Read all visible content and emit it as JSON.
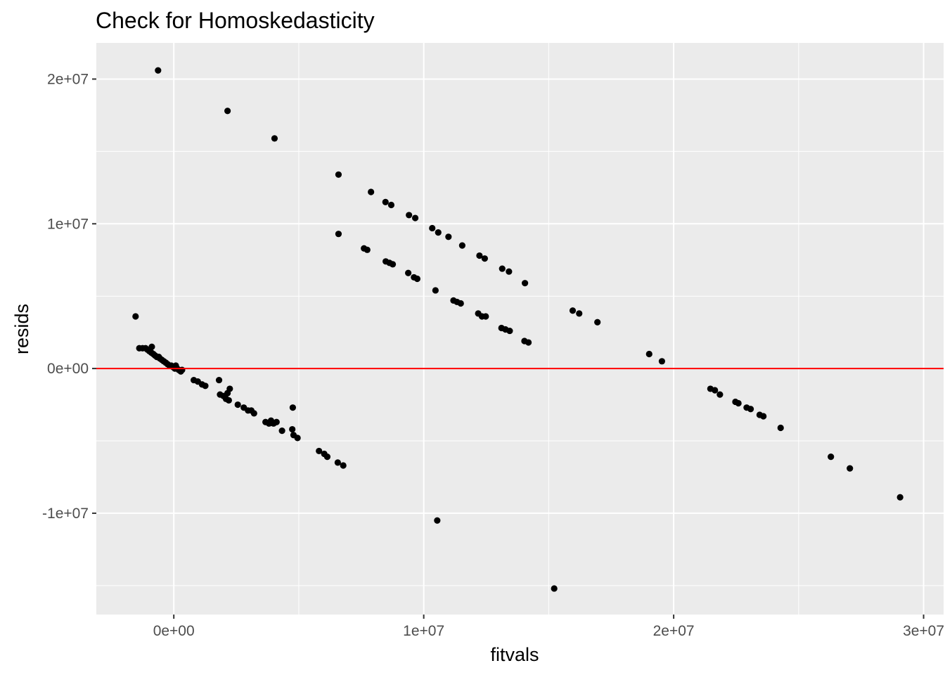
{
  "chart_data": {
    "type": "scatter",
    "title": "Check for Homoskedasticity",
    "xlabel": "fitvals",
    "ylabel": "resids",
    "xlim": [
      -3100000,
      30800000
    ],
    "ylim": [
      -17000000,
      22500000
    ],
    "x_ticks": [
      {
        "value": 0,
        "label": "0e+00"
      },
      {
        "value": 10000000,
        "label": "1e+07"
      },
      {
        "value": 20000000,
        "label": "2e+07"
      },
      {
        "value": 30000000,
        "label": "3e+07"
      }
    ],
    "y_ticks": [
      {
        "value": -10000000,
        "label": "-1e+07"
      },
      {
        "value": 0,
        "label": "0e+00"
      },
      {
        "value": 10000000,
        "label": "1e+07"
      },
      {
        "value": 20000000,
        "label": "2e+07"
      }
    ],
    "x_minor": [
      -5000000,
      5000000,
      15000000,
      25000000
    ],
    "y_minor": [
      -15000000,
      -5000000,
      5000000,
      15000000
    ],
    "grid": true,
    "hline": {
      "y": 0,
      "color": "#ff0000"
    },
    "colors": {
      "panel": "#ebebeb",
      "grid": "#ffffff",
      "points": "#000000",
      "hline": "#ff0000"
    },
    "points": [
      [
        -630000,
        20600000
      ],
      [
        2150000,
        17800000
      ],
      [
        4030000,
        15900000
      ],
      [
        6590000,
        13400000
      ],
      [
        7890000,
        12200000
      ],
      [
        8470000,
        11500000
      ],
      [
        8700000,
        11300000
      ],
      [
        9410000,
        10600000
      ],
      [
        9660000,
        10400000
      ],
      [
        10340000,
        9700000
      ],
      [
        10580000,
        9400000
      ],
      [
        10990000,
        9100000
      ],
      [
        11540000,
        8500000
      ],
      [
        12230000,
        7800000
      ],
      [
        12440000,
        7600000
      ],
      [
        13140000,
        6900000
      ],
      [
        13410000,
        6700000
      ],
      [
        14050000,
        5900000
      ],
      [
        6590000,
        9300000
      ],
      [
        7610000,
        8300000
      ],
      [
        7740000,
        8200000
      ],
      [
        8480000,
        7400000
      ],
      [
        8630000,
        7300000
      ],
      [
        8760000,
        7200000
      ],
      [
        9380000,
        6600000
      ],
      [
        9610000,
        6300000
      ],
      [
        9740000,
        6200000
      ],
      [
        10470000,
        5400000
      ],
      [
        11190000,
        4700000
      ],
      [
        11330000,
        4600000
      ],
      [
        11480000,
        4500000
      ],
      [
        12180000,
        3800000
      ],
      [
        12330000,
        3600000
      ],
      [
        12480000,
        3600000
      ],
      [
        13110000,
        2800000
      ],
      [
        13270000,
        2700000
      ],
      [
        13440000,
        2600000
      ],
      [
        14030000,
        1900000
      ],
      [
        14190000,
        1800000
      ],
      [
        15960000,
        4000000
      ],
      [
        16220000,
        3800000
      ],
      [
        16950000,
        3200000
      ],
      [
        19020000,
        1000000
      ],
      [
        19530000,
        500000
      ],
      [
        21470000,
        -1400000
      ],
      [
        21650000,
        -1500000
      ],
      [
        21850000,
        -1800000
      ],
      [
        22470000,
        -2300000
      ],
      [
        22590000,
        -2400000
      ],
      [
        22920000,
        -2700000
      ],
      [
        23080000,
        -2800000
      ],
      [
        23440000,
        -3200000
      ],
      [
        23590000,
        -3300000
      ],
      [
        24280000,
        -4100000
      ],
      [
        26290000,
        -6100000
      ],
      [
        27050000,
        -6900000
      ],
      [
        29060000,
        -8900000
      ],
      [
        10540000,
        -10500000
      ],
      [
        15220000,
        -15200000
      ],
      [
        -1530000,
        3600000
      ],
      [
        -1380000,
        1400000
      ],
      [
        -1250000,
        1400000
      ],
      [
        -1130000,
        1400000
      ],
      [
        -1050000,
        1300000
      ],
      [
        -980000,
        1200000
      ],
      [
        -900000,
        1100000
      ],
      [
        -880000,
        1500000
      ],
      [
        -820000,
        1000000
      ],
      [
        -750000,
        900000
      ],
      [
        -680000,
        800000
      ],
      [
        -600000,
        800000
      ],
      [
        -560000,
        700000
      ],
      [
        -480000,
        600000
      ],
      [
        -400000,
        500000
      ],
      [
        -320000,
        400000
      ],
      [
        -250000,
        300000
      ],
      [
        -170000,
        200000
      ],
      [
        -100000,
        200000
      ],
      [
        -30000,
        100000
      ],
      [
        40000,
        0
      ],
      [
        80000,
        200000
      ],
      [
        130000,
        0
      ],
      [
        200000,
        -100000
      ],
      [
        280000,
        -200000
      ],
      [
        330000,
        -100000
      ],
      [
        800000,
        -800000
      ],
      [
        960000,
        -900000
      ],
      [
        1130000,
        -1100000
      ],
      [
        1260000,
        -1200000
      ],
      [
        1810000,
        -800000
      ],
      [
        1850000,
        -1800000
      ],
      [
        1990000,
        -1900000
      ],
      [
        2090000,
        -2100000
      ],
      [
        2150000,
        -1700000
      ],
      [
        2200000,
        -2200000
      ],
      [
        2240000,
        -1400000
      ],
      [
        2560000,
        -2500000
      ],
      [
        2800000,
        -2700000
      ],
      [
        2970000,
        -2900000
      ],
      [
        3100000,
        -2900000
      ],
      [
        3210000,
        -3100000
      ],
      [
        3670000,
        -3700000
      ],
      [
        3810000,
        -3800000
      ],
      [
        3890000,
        -3600000
      ],
      [
        3990000,
        -3800000
      ],
      [
        4110000,
        -3700000
      ],
      [
        4330000,
        -4300000
      ],
      [
        4740000,
        -4200000
      ],
      [
        4760000,
        -2700000
      ],
      [
        4790000,
        -4600000
      ],
      [
        4950000,
        -4800000
      ],
      [
        5810000,
        -5700000
      ],
      [
        6020000,
        -5900000
      ],
      [
        6140000,
        -6100000
      ],
      [
        6560000,
        -6500000
      ],
      [
        6780000,
        -6700000
      ]
    ]
  }
}
